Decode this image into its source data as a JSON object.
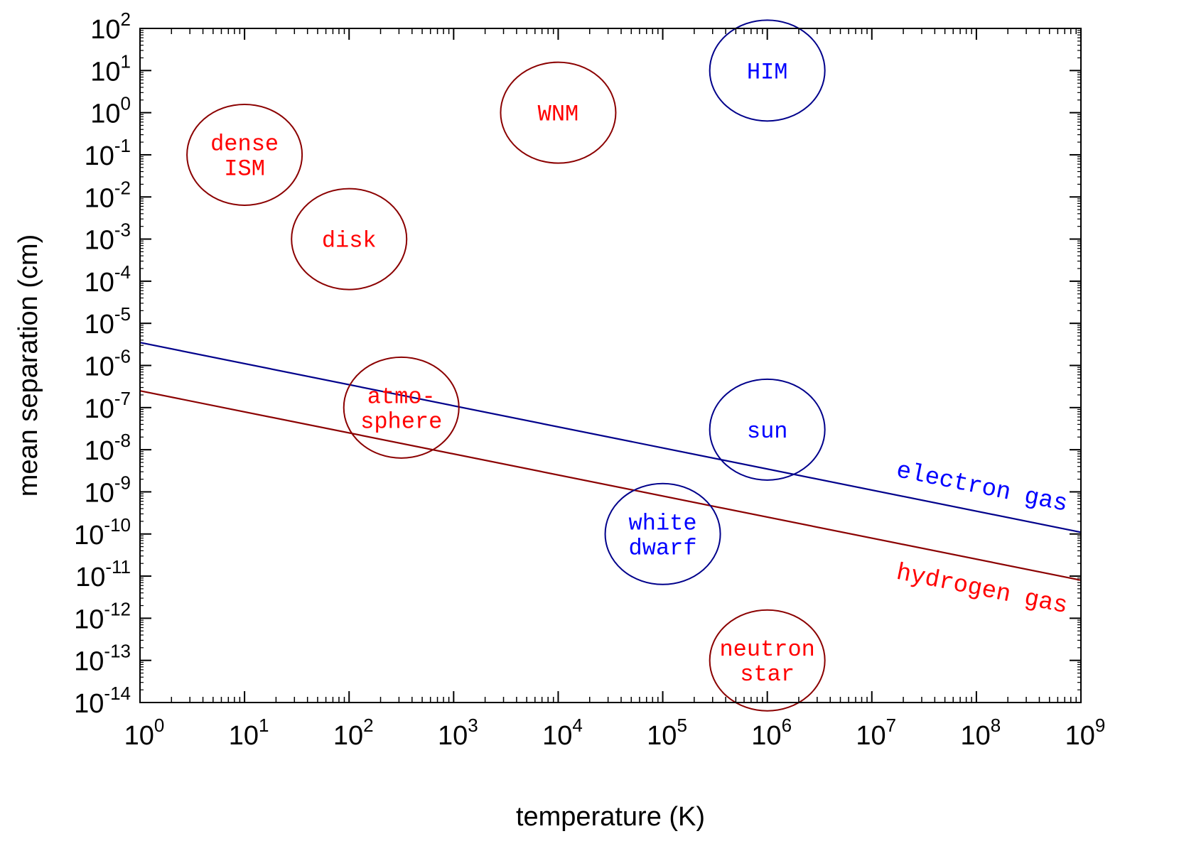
{
  "chart_data": {
    "type": "line",
    "title": "",
    "xlabel": "temperature (K)",
    "ylabel": "mean separation (cm)",
    "xscale": "log",
    "yscale": "log",
    "xlim": [
      1,
      1000000000
    ],
    "ylim": [
      1e-14,
      100
    ],
    "grid": false,
    "x_ticks": [
      {
        "base": "10",
        "exp": "0"
      },
      {
        "base": "10",
        "exp": "1"
      },
      {
        "base": "10",
        "exp": "2"
      },
      {
        "base": "10",
        "exp": "3"
      },
      {
        "base": "10",
        "exp": "4"
      },
      {
        "base": "10",
        "exp": "5"
      },
      {
        "base": "10",
        "exp": "6"
      },
      {
        "base": "10",
        "exp": "7"
      },
      {
        "base": "10",
        "exp": "8"
      },
      {
        "base": "10",
        "exp": "9"
      }
    ],
    "y_ticks": [
      {
        "base": "10",
        "exp": "-14"
      },
      {
        "base": "10",
        "exp": "-13"
      },
      {
        "base": "10",
        "exp": "-12"
      },
      {
        "base": "10",
        "exp": "-11"
      },
      {
        "base": "10",
        "exp": "-10"
      },
      {
        "base": "10",
        "exp": "-9"
      },
      {
        "base": "10",
        "exp": "-8"
      },
      {
        "base": "10",
        "exp": "-7"
      },
      {
        "base": "10",
        "exp": "-6"
      },
      {
        "base": "10",
        "exp": "-5"
      },
      {
        "base": "10",
        "exp": "-4"
      },
      {
        "base": "10",
        "exp": "-3"
      },
      {
        "base": "10",
        "exp": "-2"
      },
      {
        "base": "10",
        "exp": "-1"
      },
      {
        "base": "10",
        "exp": "0"
      },
      {
        "base": "10",
        "exp": "1"
      },
      {
        "base": "10",
        "exp": "2"
      }
    ],
    "series": [
      {
        "name": "electron gas",
        "color": "#00008b",
        "label_color": "#0000ff",
        "x": [
          1,
          1000000000
        ],
        "y": [
          3.5e-06,
          1.1e-10
        ]
      },
      {
        "name": "hydrogen gas",
        "color": "#8b0000",
        "label_color": "#ff0000",
        "x": [
          1,
          1000000000
        ],
        "y": [
          2.5e-07,
          8e-12
        ]
      }
    ],
    "regions": [
      {
        "lines": [
          "dense",
          "ISM"
        ],
        "x": 10,
        "y": 0.1,
        "edge_color": "#8b0000",
        "text_color": "#ff0000"
      },
      {
        "lines": [
          "disk"
        ],
        "x": 100,
        "y": 0.001,
        "edge_color": "#8b0000",
        "text_color": "#ff0000"
      },
      {
        "lines": [
          "WNM"
        ],
        "x": 10000,
        "y": 1,
        "edge_color": "#8b0000",
        "text_color": "#ff0000"
      },
      {
        "lines": [
          "HIM"
        ],
        "x": 1000000,
        "y": 10,
        "edge_color": "#00008b",
        "text_color": "#0000ff"
      },
      {
        "lines": [
          "atmo-",
          "sphere"
        ],
        "x": 316,
        "y": 1e-07,
        "edge_color": "#8b0000",
        "text_color": "#ff0000"
      },
      {
        "lines": [
          "sun"
        ],
        "x": 1000000,
        "y": 3e-08,
        "edge_color": "#00008b",
        "text_color": "#0000ff"
      },
      {
        "lines": [
          "white",
          "dwarf"
        ],
        "x": 100000,
        "y": 1e-10,
        "edge_color": "#00008b",
        "text_color": "#0000ff"
      },
      {
        "lines": [
          "neutron",
          "star"
        ],
        "x": 1000000,
        "y": 1e-13,
        "edge_color": "#8b0000",
        "text_color": "#ff0000"
      }
    ]
  }
}
